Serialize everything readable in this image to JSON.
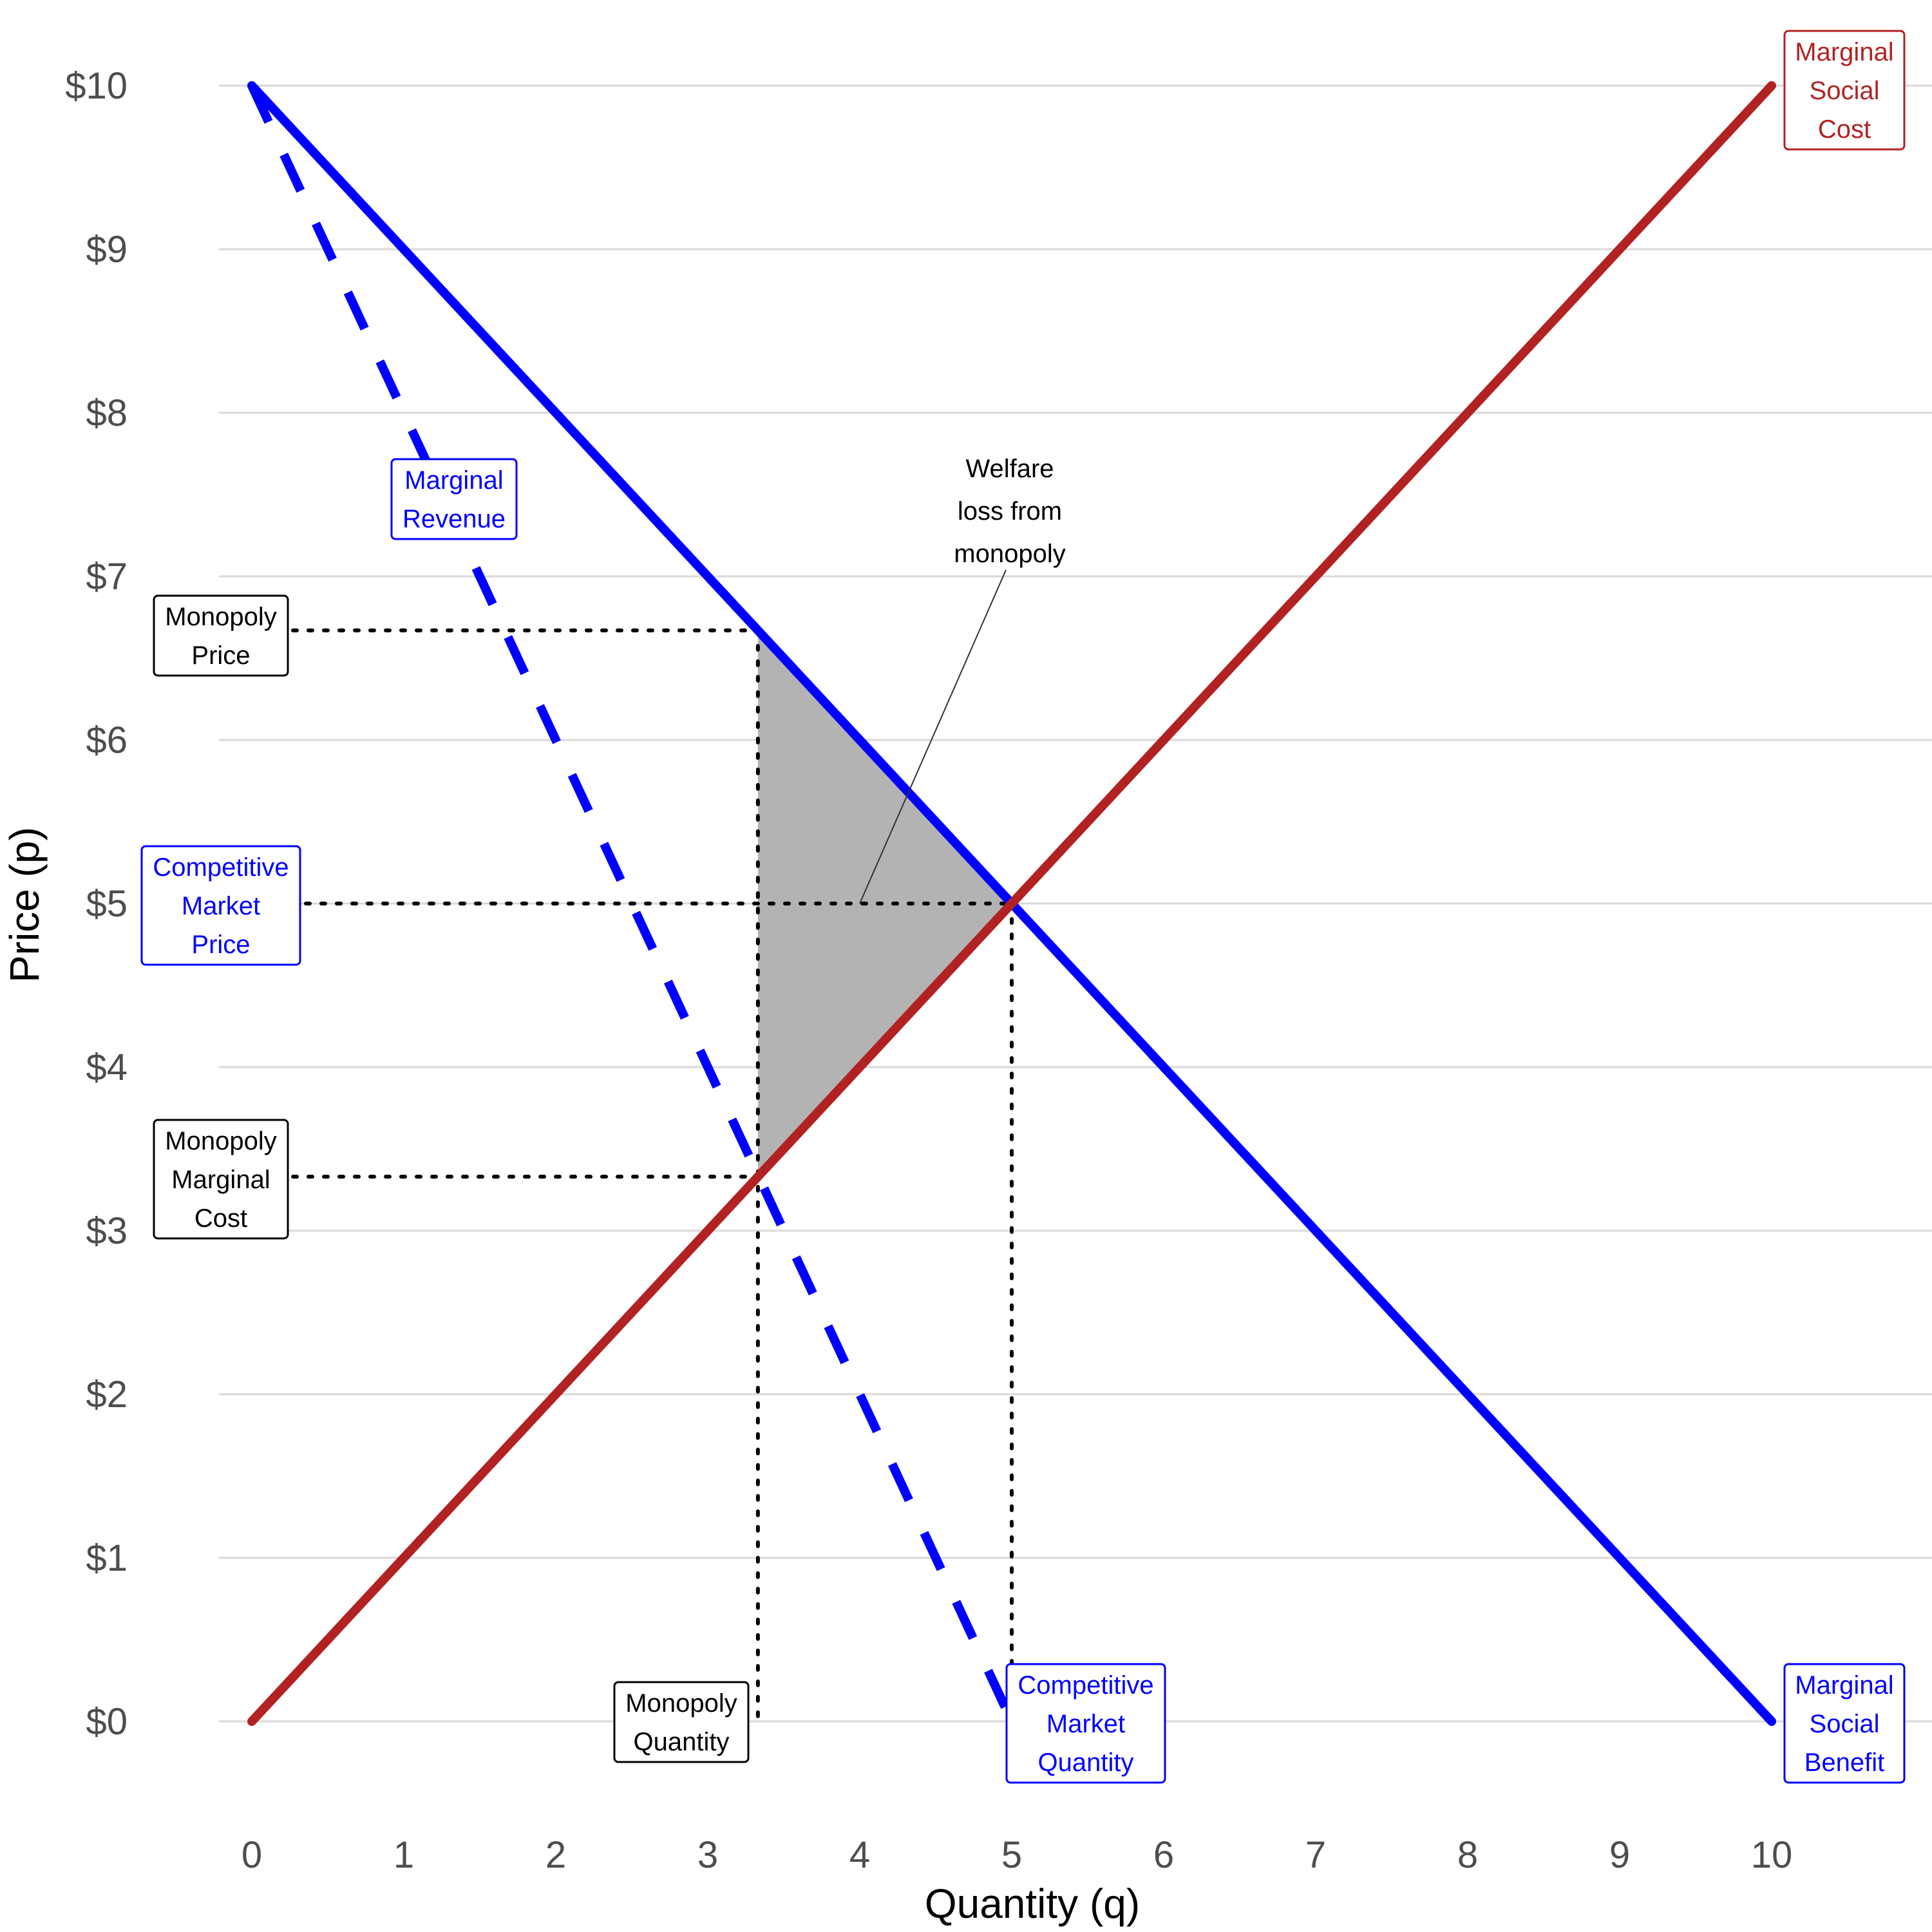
{
  "chart_data": {
    "type": "line",
    "title": "",
    "xlabel": "Quantity (q)",
    "ylabel": "Price (p)",
    "xlim": [
      0,
      10
    ],
    "ylim": [
      0,
      10
    ],
    "x_ticks": [
      "0",
      "1",
      "2",
      "3",
      "4",
      "5",
      "6",
      "7",
      "8",
      "9",
      "10"
    ],
    "y_ticks": [
      "$0",
      "$1",
      "$2",
      "$3",
      "$4",
      "$5",
      "$6",
      "$7",
      "$8",
      "$9",
      "$10"
    ],
    "grid": "horizontal",
    "series": [
      {
        "name": "Marginal Social Benefit",
        "style": "solid",
        "color": "#0000ff",
        "x": [
          0,
          10
        ],
        "y": [
          10,
          0
        ]
      },
      {
        "name": "Marginal Social Cost",
        "style": "solid",
        "color": "#b22222",
        "x": [
          0,
          10
        ],
        "y": [
          0,
          10
        ]
      },
      {
        "name": "Marginal Revenue",
        "style": "dashed",
        "color": "#0000ff",
        "x": [
          0,
          5
        ],
        "y": [
          10,
          0
        ]
      }
    ],
    "points": {
      "monopoly_quantity": 3.33,
      "monopoly_price": 6.67,
      "monopoly_marginal_cost": 3.33,
      "competitive_quantity": 5,
      "competitive_price": 5
    },
    "welfare_loss_region": {
      "color": "#b3b3b3",
      "vertices": [
        [
          3.33,
          6.67
        ],
        [
          5,
          5
        ],
        [
          3.33,
          3.33
        ]
      ]
    },
    "labels": {
      "marginal_social_cost": [
        "Marginal",
        "Social",
        "Cost"
      ],
      "marginal_social_benefit": [
        "Marginal",
        "Social",
        "Benefit"
      ],
      "marginal_revenue": [
        "Marginal",
        "Revenue"
      ],
      "monopoly_price": [
        "Monopoly",
        "Price"
      ],
      "competitive_market_price": [
        "Competitive",
        "Market",
        "Price"
      ],
      "monopoly_marginal_cost": [
        "Monopoly",
        "Marginal",
        "Cost"
      ],
      "monopoly_quantity": [
        "Monopoly",
        "Quantity"
      ],
      "competitive_market_quantity": [
        "Competitive",
        "Market",
        "Quantity"
      ],
      "welfare_loss": [
        "Welfare",
        "loss from",
        "monopoly"
      ]
    }
  }
}
